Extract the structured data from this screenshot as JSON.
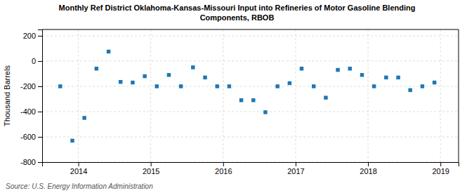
{
  "chart_data": {
    "type": "scatter",
    "title": "Monthly Ref District Oklahoma-Kansas-Missouri Input into Refineries of Motor Gasoline Blending\nComponents, RBOB",
    "ylabel": "Thousand Barrels",
    "annotations": [
      "Source: U.S. Energy Information Administration"
    ],
    "marker": "square",
    "grid": true,
    "xlim": [
      2013.5,
      2019.25
    ],
    "xticks": [
      2014,
      2015,
      2016,
      2017,
      2018,
      2019
    ],
    "ylim": [
      -800,
      250
    ],
    "yticks": [
      -800,
      -600,
      -400,
      -200,
      0,
      200
    ],
    "x": [
      2013.75,
      2013.917,
      2014.083,
      2014.25,
      2014.417,
      2014.583,
      2014.75,
      2014.917,
      2015.083,
      2015.25,
      2015.417,
      2015.583,
      2015.75,
      2015.917,
      2016.083,
      2016.25,
      2016.417,
      2016.583,
      2016.75,
      2016.917,
      2017.083,
      2017.25,
      2017.417,
      2017.583,
      2017.75,
      2017.917,
      2018.083,
      2018.25,
      2018.417,
      2018.583,
      2018.75,
      2018.917
    ],
    "values": [
      -200,
      -630,
      -450,
      -60,
      75,
      -165,
      -170,
      -120,
      -200,
      -110,
      -200,
      -50,
      -130,
      -200,
      -200,
      -310,
      -310,
      -405,
      -200,
      -175,
      -60,
      -200,
      -290,
      -70,
      -60,
      -110,
      -200,
      -130,
      -130,
      -230,
      -200,
      -170
    ]
  }
}
